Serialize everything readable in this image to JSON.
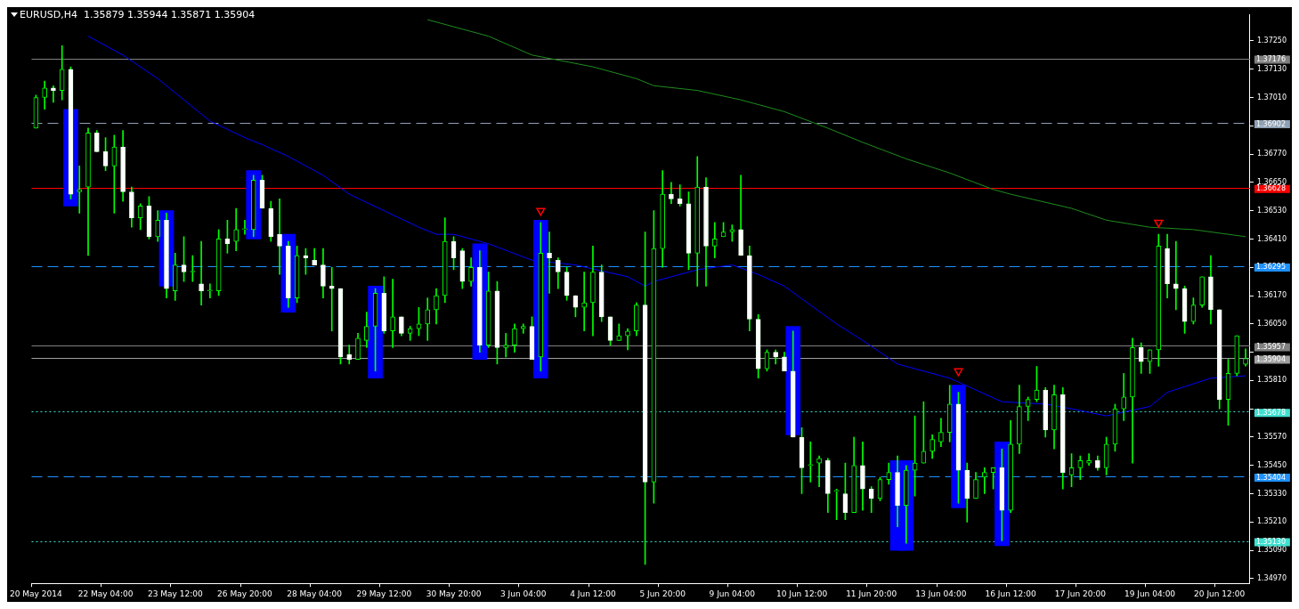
{
  "chart_data": {
    "type": "candlestick",
    "title": "EURUSD,H4  1.35879 1.35944 1.35871 1.35904",
    "categories": [
      "20 May 2014",
      null,
      null,
      null,
      null,
      null,
      null,
      null,
      "22 May 04:00",
      null,
      null,
      null,
      null,
      null,
      null,
      null,
      "23 May 12:00",
      null,
      null,
      null,
      null,
      null,
      null,
      null,
      "26 May 20:00",
      null,
      null,
      null,
      null,
      null,
      null,
      null,
      "28 May 04:00",
      null,
      null,
      null,
      null,
      null,
      null,
      null,
      "29 May 12:00",
      null,
      null,
      null,
      null,
      null,
      null,
      null,
      "30 May 20:00",
      null,
      null,
      null,
      null,
      null,
      null,
      null,
      "3 Jun 04:00",
      null,
      null,
      null,
      null,
      null,
      null,
      null,
      "4 Jun 12:00",
      null,
      null,
      null,
      null,
      null,
      null,
      null,
      "5 Jun 20:00",
      null,
      null,
      null,
      null,
      null,
      null,
      null,
      "9 Jun 04:00",
      null,
      null,
      null,
      null,
      null,
      null,
      null,
      "10 Jun 12:00",
      null,
      null,
      null,
      null,
      null,
      null,
      null,
      "11 Jun 20:00",
      null,
      null,
      null,
      null,
      null,
      null,
      null,
      "13 Jun 04:00",
      null,
      null,
      null,
      null,
      null,
      null,
      null,
      "16 Jun 12:00",
      null,
      null,
      null,
      null,
      null,
      null,
      null,
      "17 Jun 20:00",
      null,
      null,
      null,
      null,
      null,
      null,
      null,
      "19 Jun 04:00",
      null,
      null,
      null,
      null,
      null,
      null,
      null,
      "20 Jun 12:00",
      null,
      null,
      null
    ],
    "ohlc": [
      [
        1.3688,
        1.3702,
        1.3688,
        1.3701
      ],
      [
        1.3701,
        1.3708,
        1.3696,
        1.3705
      ],
      [
        1.3705,
        1.3706,
        1.3699,
        1.3704
      ],
      [
        1.3704,
        1.3723,
        1.37,
        1.3713
      ],
      [
        1.3713,
        1.3714,
        1.3658,
        1.366
      ],
      [
        1.3661,
        1.3672,
        1.3652,
        1.3662
      ],
      [
        1.3663,
        1.3688,
        1.3634,
        1.3686
      ],
      [
        1.3686,
        1.3687,
        1.3678,
        1.3678
      ],
      [
        1.3678,
        1.3684,
        1.367,
        1.3672
      ],
      [
        1.3672,
        1.3685,
        1.3652,
        1.368
      ],
      [
        1.368,
        1.3687,
        1.3657,
        1.3661
      ],
      [
        1.3661,
        1.3663,
        1.3646,
        1.365
      ],
      [
        1.365,
        1.3656,
        1.3645,
        1.3655
      ],
      [
        1.3655,
        1.3659,
        1.3641,
        1.3642
      ],
      [
        1.3642,
        1.3653,
        1.364,
        1.3649
      ],
      [
        1.3649,
        1.3652,
        1.3616,
        1.362
      ],
      [
        1.3619,
        1.3635,
        1.3615,
        1.363
      ],
      [
        1.363,
        1.3642,
        1.3623,
        1.3627
      ],
      [
        1.3627,
        1.3634,
        1.3623,
        1.3627
      ],
      [
        1.3622,
        1.364,
        1.3613,
        1.3619
      ],
      [
        1.3619,
        1.3622,
        1.3616,
        1.3619
      ],
      [
        1.3619,
        1.3645,
        1.3617,
        1.3641
      ],
      [
        1.3641,
        1.3649,
        1.3635,
        1.3639
      ],
      [
        1.364,
        1.3654,
        1.3636,
        1.3645
      ],
      [
        1.3645,
        1.3649,
        1.3643,
        1.3645
      ],
      [
        1.3645,
        1.3668,
        1.3642,
        1.3666
      ],
      [
        1.3666,
        1.3668,
        1.3654,
        1.3654
      ],
      [
        1.3654,
        1.3657,
        1.364,
        1.3642
      ],
      [
        1.3643,
        1.3658,
        1.3626,
        1.3638
      ],
      [
        1.3638,
        1.364,
        1.3612,
        1.3616
      ],
      [
        1.3616,
        1.3638,
        1.3614,
        1.3634
      ],
      [
        1.3634,
        1.3637,
        1.3626,
        1.3633
      ],
      [
        1.3632,
        1.3637,
        1.363,
        1.363
      ],
      [
        1.363,
        1.3637,
        1.3616,
        1.3621
      ],
      [
        1.3621,
        1.3629,
        1.3602,
        1.362
      ],
      [
        1.362,
        1.362,
        1.3588,
        1.3591
      ],
      [
        1.3592,
        1.3596,
        1.3588,
        1.359
      ],
      [
        1.359,
        1.3601,
        1.359,
        1.3599
      ],
      [
        1.3598,
        1.361,
        1.3595,
        1.3604
      ],
      [
        1.3604,
        1.362,
        1.3585,
        1.3618
      ],
      [
        1.3618,
        1.3625,
        1.3601,
        1.3602
      ],
      [
        1.3602,
        1.3624,
        1.3595,
        1.3608
      ],
      [
        1.3608,
        1.3608,
        1.36,
        1.3601
      ],
      [
        1.3601,
        1.3604,
        1.3598,
        1.3603
      ],
      [
        1.3603,
        1.3612,
        1.36,
        1.3605
      ],
      [
        1.3605,
        1.3616,
        1.3598,
        1.3611
      ],
      [
        1.3611,
        1.362,
        1.3605,
        1.3617
      ],
      [
        1.3617,
        1.365,
        1.3614,
        1.364
      ],
      [
        1.364,
        1.3642,
        1.3628,
        1.3633
      ],
      [
        1.3636,
        1.3637,
        1.362,
        1.3623
      ],
      [
        1.3623,
        1.3633,
        1.3621,
        1.3629
      ],
      [
        1.3629,
        1.3636,
        1.3593,
        1.3596
      ],
      [
        1.3596,
        1.3627,
        1.3595,
        1.3619
      ],
      [
        1.3619,
        1.3623,
        1.3588,
        1.3595
      ],
      [
        1.3595,
        1.3601,
        1.3591,
        1.3596
      ],
      [
        1.3596,
        1.3605,
        1.3593,
        1.3603
      ],
      [
        1.3603,
        1.3605,
        1.3601,
        1.3604
      ],
      [
        1.3604,
        1.3608,
        1.359,
        1.359
      ],
      [
        1.3591,
        1.3648,
        1.3585,
        1.3635
      ],
      [
        1.3635,
        1.3644,
        1.3618,
        1.3633
      ],
      [
        1.3632,
        1.3633,
        1.362,
        1.3627
      ],
      [
        1.3627,
        1.3629,
        1.3615,
        1.3617
      ],
      [
        1.3617,
        1.3617,
        1.3608,
        1.3612
      ],
      [
        1.3612,
        1.3627,
        1.3602,
        1.3614
      ],
      [
        1.3614,
        1.3638,
        1.36,
        1.3627
      ],
      [
        1.3627,
        1.363,
        1.3606,
        1.3608
      ],
      [
        1.3608,
        1.3608,
        1.3596,
        1.3598
      ],
      [
        1.3598,
        1.3605,
        1.3598,
        1.36
      ],
      [
        1.36,
        1.3603,
        1.3594,
        1.3602
      ],
      [
        1.3602,
        1.3614,
        1.36,
        1.3613
      ],
      [
        1.3613,
        1.3644,
        1.3503,
        1.3538
      ],
      [
        1.3538,
        1.3653,
        1.3529,
        1.3637
      ],
      [
        1.3637,
        1.367,
        1.3629,
        1.366
      ],
      [
        1.366,
        1.3665,
        1.3656,
        1.3658
      ],
      [
        1.3658,
        1.3664,
        1.3655,
        1.3656
      ],
      [
        1.3656,
        1.3661,
        1.3628,
        1.3635
      ],
      [
        1.3635,
        1.3676,
        1.3621,
        1.3663
      ],
      [
        1.3663,
        1.3667,
        1.3621,
        1.3638
      ],
      [
        1.3638,
        1.3648,
        1.3633,
        1.3641
      ],
      [
        1.3642,
        1.3648,
        1.3642,
        1.3644
      ],
      [
        1.3644,
        1.3647,
        1.364,
        1.3645
      ],
      [
        1.3645,
        1.3668,
        1.3634,
        1.3634
      ],
      [
        1.3634,
        1.3638,
        1.3602,
        1.3607
      ],
      [
        1.3607,
        1.3609,
        1.3582,
        1.3586
      ],
      [
        1.3586,
        1.3594,
        1.3585,
        1.3593
      ],
      [
        1.3593,
        1.3594,
        1.3588,
        1.3591
      ],
      [
        1.3591,
        1.3593,
        1.3585,
        1.3585
      ],
      [
        1.3585,
        1.3602,
        1.3557,
        1.3557
      ],
      [
        1.3557,
        1.3561,
        1.3533,
        1.3544
      ],
      [
        1.3545,
        1.3555,
        1.3538,
        1.3545
      ],
      [
        1.3546,
        1.3549,
        1.3536,
        1.3548
      ],
      [
        1.3547,
        1.3548,
        1.3525,
        1.3533
      ],
      [
        1.3534,
        1.3535,
        1.3522,
        1.3534
      ],
      [
        1.3533,
        1.3546,
        1.3522,
        1.3525
      ],
      [
        1.3525,
        1.3557,
        1.3525,
        1.3545
      ],
      [
        1.3545,
        1.3555,
        1.3526,
        1.3535
      ],
      [
        1.3535,
        1.3536,
        1.3525,
        1.3531
      ],
      [
        1.3531,
        1.354,
        1.353,
        1.3539
      ],
      [
        1.3539,
        1.3546,
        1.3537,
        1.3542
      ],
      [
        1.3542,
        1.3549,
        1.3519,
        1.3528
      ],
      [
        1.3528,
        1.3545,
        1.3512,
        1.3543
      ],
      [
        1.3543,
        1.3566,
        1.3532,
        1.3546
      ],
      [
        1.3546,
        1.3572,
        1.3546,
        1.3551
      ],
      [
        1.3551,
        1.3558,
        1.3548,
        1.3556
      ],
      [
        1.3555,
        1.3565,
        1.3553,
        1.3559
      ],
      [
        1.3559,
        1.3579,
        1.3555,
        1.3571
      ],
      [
        1.3571,
        1.3576,
        1.3529,
        1.3543
      ],
      [
        1.3543,
        1.3546,
        1.3521,
        1.3531
      ],
      [
        1.3531,
        1.3542,
        1.3531,
        1.3539
      ],
      [
        1.354,
        1.3544,
        1.3533,
        1.3542
      ],
      [
        1.3542,
        1.3544,
        1.3535,
        1.3544
      ],
      [
        1.3544,
        1.3552,
        1.3513,
        1.3526
      ],
      [
        1.3526,
        1.3564,
        1.3525,
        1.3554
      ],
      [
        1.3554,
        1.3579,
        1.355,
        1.357
      ],
      [
        1.357,
        1.3574,
        1.3564,
        1.3573
      ],
      [
        1.3573,
        1.3587,
        1.3572,
        1.3577
      ],
      [
        1.3577,
        1.3578,
        1.3557,
        1.356
      ],
      [
        1.356,
        1.3579,
        1.3552,
        1.3575
      ],
      [
        1.3575,
        1.3578,
        1.3535,
        1.3542
      ],
      [
        1.3541,
        1.355,
        1.3536,
        1.3544
      ],
      [
        1.3544,
        1.3549,
        1.3539,
        1.3547
      ],
      [
        1.3546,
        1.355,
        1.3545,
        1.3547
      ],
      [
        1.3547,
        1.3549,
        1.3543,
        1.3544
      ],
      [
        1.3544,
        1.3557,
        1.3541,
        1.3554
      ],
      [
        1.3554,
        1.3571,
        1.3551,
        1.3569
      ],
      [
        1.3569,
        1.3584,
        1.3564,
        1.3574
      ],
      [
        1.3574,
        1.3599,
        1.3546,
        1.3595
      ],
      [
        1.3595,
        1.3597,
        1.3584,
        1.3589
      ],
      [
        1.3589,
        1.3594,
        1.3584,
        1.3594
      ],
      [
        1.3594,
        1.3643,
        1.3587,
        1.3638
      ],
      [
        1.3637,
        1.3643,
        1.3616,
        1.3622
      ],
      [
        1.3622,
        1.364,
        1.3611,
        1.362
      ],
      [
        1.362,
        1.3621,
        1.3601,
        1.3606
      ],
      [
        1.3606,
        1.3616,
        1.3605,
        1.3613
      ],
      [
        1.3613,
        1.3625,
        1.3612,
        1.3625
      ],
      [
        1.3625,
        1.3634,
        1.3605,
        1.3611
      ],
      [
        1.3611,
        1.3611,
        1.3569,
        1.3573
      ],
      [
        1.3573,
        1.359,
        1.3562,
        1.3584
      ],
      [
        1.3584,
        1.36,
        1.3583,
        1.36
      ],
      [
        1.35879,
        1.35944,
        1.35871,
        1.35904
      ]
    ],
    "series": [
      {
        "type": "line",
        "color": "#0000ff",
        "values": [
          null,
          null,
          null,
          null,
          null,
          null,
          1.3727,
          null,
          null,
          null,
          1.3719,
          null,
          null,
          null,
          1.3709,
          null,
          null,
          null,
          null,
          null,
          1.3691,
          null,
          null,
          null,
          1.3684,
          null,
          1.3681,
          null,
          null,
          1.3676,
          null,
          null,
          null,
          1.3668,
          null,
          null,
          1.366,
          null,
          null,
          null,
          1.3653,
          null,
          null,
          null,
          1.3646,
          null,
          1.3643,
          null,
          1.3643,
          null,
          1.3641,
          null,
          1.3639,
          null,
          null,
          null,
          null,
          1.3632,
          null,
          null,
          null,
          null,
          1.363,
          null,
          null,
          null,
          null,
          null,
          1.3625,
          null,
          1.3621,
          1.3623,
          null,
          null,
          null,
          null,
          1.3628,
          null,
          null,
          null,
          1.363,
          null,
          null,
          1.3626,
          null,
          null,
          1.3621,
          null,
          null,
          null,
          null,
          null,
          1.3605,
          null,
          null,
          1.3598,
          null,
          null,
          null,
          1.3588,
          null,
          null,
          null,
          null,
          null,
          1.3582,
          null,
          null,
          null,
          null,
          null,
          1.3572,
          null,
          null,
          null,
          null,
          1.3571,
          null,
          null,
          1.3569,
          null,
          null,
          null,
          1.3566,
          null,
          null,
          null,
          null,
          1.357,
          null,
          1.3576,
          null,
          null,
          null,
          null,
          1.3582,
          null,
          null,
          null,
          1.3583
        ]
      },
      {
        "type": "line",
        "color": "#1e8c1e",
        "values": [
          null,
          null,
          null,
          null,
          null,
          null,
          null,
          null,
          null,
          null,
          null,
          null,
          null,
          null,
          null,
          null,
          null,
          null,
          null,
          null,
          null,
          null,
          null,
          null,
          null,
          null,
          null,
          null,
          null,
          null,
          null,
          null,
          null,
          null,
          null,
          null,
          null,
          null,
          null,
          null,
          null,
          null,
          null,
          null,
          null,
          1.3734,
          null,
          null,
          null,
          null,
          null,
          null,
          1.3727,
          null,
          null,
          null,
          null,
          1.3719,
          null,
          null,
          null,
          null,
          null,
          null,
          1.3714,
          null,
          null,
          null,
          null,
          1.3709,
          null,
          1.3706,
          null,
          null,
          null,
          null,
          1.3704,
          null,
          null,
          null,
          null,
          1.37,
          null,
          null,
          null,
          null,
          1.3695,
          null,
          null,
          null,
          null,
          1.3688,
          null,
          null,
          null,
          1.3682,
          null,
          null,
          null,
          null,
          1.3675,
          null,
          null,
          null,
          null,
          1.3669,
          null,
          null,
          null,
          null,
          1.3662,
          null,
          1.366,
          null,
          null,
          null,
          null,
          null,
          null,
          1.3654,
          null,
          null,
          null,
          1.3649,
          null,
          null,
          null,
          null,
          1.3646,
          null,
          null,
          null,
          null,
          1.3645,
          null,
          null,
          null,
          null,
          null,
          1.3642
        ]
      },
      {
        "type": "bar",
        "color": "#0000ff",
        "base": [
          null,
          null,
          null,
          null,
          1.3655,
          null,
          null,
          null,
          null,
          null,
          null,
          null,
          null,
          null,
          null,
          1.3621,
          null,
          null,
          null,
          null,
          null,
          null,
          null,
          null,
          null,
          1.3641,
          null,
          null,
          null,
          1.361,
          null,
          null,
          null,
          null,
          null,
          null,
          null,
          null,
          null,
          1.3582,
          null,
          null,
          null,
          null,
          null,
          null,
          null,
          null,
          null,
          null,
          null,
          1.359,
          null,
          null,
          null,
          null,
          null,
          null,
          1.3582,
          null,
          null,
          null,
          null,
          null,
          null,
          null,
          null,
          null,
          null,
          null,
          null,
          null,
          null,
          null,
          null,
          null,
          null,
          null,
          null,
          null,
          null,
          null,
          null,
          null,
          null,
          null,
          null,
          1.3558,
          null,
          null,
          null,
          null,
          null,
          null,
          null,
          null,
          null,
          null,
          null,
          1.3509,
          1.3509,
          null,
          null,
          null,
          null,
          null,
          1.3527,
          null,
          null,
          null,
          null,
          1.3511,
          null,
          null,
          null,
          null,
          null,
          null,
          null,
          null,
          null,
          null,
          null,
          null,
          null,
          null,
          null,
          null,
          null,
          null,
          null,
          null,
          null,
          null,
          null,
          null,
          null,
          null,
          null,
          null
        ],
        "values": [
          null,
          null,
          null,
          null,
          0.0041,
          null,
          null,
          null,
          null,
          null,
          null,
          null,
          null,
          null,
          null,
          0.0032,
          null,
          null,
          null,
          null,
          null,
          null,
          null,
          null,
          null,
          0.0029,
          null,
          null,
          null,
          0.0033,
          null,
          null,
          null,
          null,
          null,
          null,
          null,
          null,
          null,
          0.0039,
          null,
          null,
          null,
          null,
          null,
          null,
          null,
          null,
          null,
          null,
          null,
          0.0049,
          null,
          null,
          null,
          null,
          null,
          null,
          0.0067,
          null,
          null,
          null,
          null,
          null,
          null,
          null,
          null,
          null,
          null,
          null,
          null,
          null,
          null,
          null,
          null,
          null,
          null,
          null,
          null,
          null,
          null,
          null,
          null,
          null,
          null,
          null,
          null,
          0.0046,
          null,
          null,
          null,
          null,
          null,
          null,
          null,
          null,
          null,
          null,
          null,
          0.0038,
          0.0038,
          null,
          null,
          null,
          null,
          null,
          0.0052,
          null,
          null,
          null,
          null,
          0.0044,
          null,
          null,
          null,
          null,
          null,
          null,
          null,
          null,
          null,
          null,
          null,
          null,
          null,
          null,
          null,
          null,
          null,
          null,
          null,
          null,
          null,
          null,
          null,
          null,
          null,
          null,
          null,
          null
        ]
      },
      {
        "type": "scatter",
        "color": "#ff0000",
        "marker": "triangle",
        "values": [
          null,
          null,
          null,
          null,
          null,
          null,
          null,
          null,
          null,
          null,
          null,
          null,
          null,
          null,
          null,
          null,
          null,
          null,
          null,
          null,
          null,
          null,
          null,
          null,
          null,
          null,
          null,
          null,
          null,
          null,
          null,
          null,
          null,
          null,
          null,
          null,
          null,
          null,
          null,
          null,
          null,
          null,
          null,
          null,
          null,
          null,
          null,
          null,
          null,
          null,
          null,
          null,
          null,
          null,
          null,
          null,
          null,
          null,
          1.3653,
          null,
          null,
          null,
          null,
          null,
          null,
          null,
          null,
          null,
          null,
          null,
          null,
          null,
          null,
          null,
          null,
          null,
          null,
          null,
          null,
          null,
          null,
          null,
          null,
          null,
          null,
          null,
          null,
          null,
          null,
          null,
          null,
          null,
          null,
          null,
          null,
          null,
          null,
          null,
          null,
          null,
          null,
          null,
          null,
          null,
          null,
          null,
          1.3585,
          null,
          null,
          null,
          null,
          null,
          null,
          null,
          null,
          null,
          null,
          null,
          null,
          null,
          null,
          null,
          null,
          null,
          null,
          null,
          null,
          null,
          null,
          1.3648,
          null,
          null,
          null,
          null,
          null,
          null,
          null,
          null,
          null,
          null
        ]
      }
    ],
    "ref_lines": [
      {
        "axis": "y",
        "value": 1.37176,
        "label": "1.37176",
        "color": "#808080",
        "line_style": "solid"
      },
      {
        "axis": "y",
        "value": 1.36902,
        "label": "1.36902",
        "color": "#8fa0b4",
        "line_style": "dashed"
      },
      {
        "axis": "y",
        "value": 1.36628,
        "label": "1.36628",
        "color": "#ff0000",
        "line_style": "solid"
      },
      {
        "axis": "y",
        "value": 1.36295,
        "label": "1.36295",
        "color": "#1e90ff",
        "line_style": "dashed"
      },
      {
        "axis": "y",
        "value": 1.35957,
        "label": "1.35957",
        "color": "#808080",
        "line_style": "solid"
      },
      {
        "axis": "y",
        "value": 1.35904,
        "label": "1.35904",
        "color": "#a0a0a0",
        "line_style": "solid"
      },
      {
        "axis": "y",
        "value": 1.35678,
        "label": "1.35678",
        "color": "#40e0d0",
        "line_style": "dotted"
      },
      {
        "axis": "y",
        "value": 1.35404,
        "label": "1.35404",
        "color": "#1e90ff",
        "line_style": "dashed"
      },
      {
        "axis": "y",
        "value": 1.3513,
        "label": "1.35130",
        "color": "#40e0d0",
        "line_style": "dotted"
      }
    ],
    "ylim": [
      1.3495,
      1.3736
    ],
    "yticks": [
      {
        "value": 1.3725,
        "label": "1.37250"
      },
      {
        "value": 1.3713,
        "label": "1.37130"
      },
      {
        "value": 1.3701,
        "label": "1.37010"
      },
      {
        "value": 1.3689,
        "label": null
      },
      {
        "value": 1.3677,
        "label": "1.36770"
      },
      {
        "value": 1.3665,
        "label": "1.36650"
      },
      {
        "value": 1.3653,
        "label": "1.36530"
      },
      {
        "value": 1.3641,
        "label": "1.36410"
      },
      {
        "value": 1.3629,
        "label": null
      },
      {
        "value": 1.3617,
        "label": "1.36170"
      },
      {
        "value": 1.3605,
        "label": "1.36050"
      },
      {
        "value": 1.3593,
        "label": null
      },
      {
        "value": 1.3581,
        "label": "1.35810"
      },
      {
        "value": 1.3569,
        "label": null
      },
      {
        "value": 1.3557,
        "label": "1.35570"
      },
      {
        "value": 1.3545,
        "label": "1.35450"
      },
      {
        "value": 1.3533,
        "label": "1.35330"
      },
      {
        "value": 1.3521,
        "label": "1.35210"
      },
      {
        "value": 1.3509,
        "label": "1.35090"
      },
      {
        "value": 1.3497,
        "label": "1.34970"
      }
    ]
  }
}
